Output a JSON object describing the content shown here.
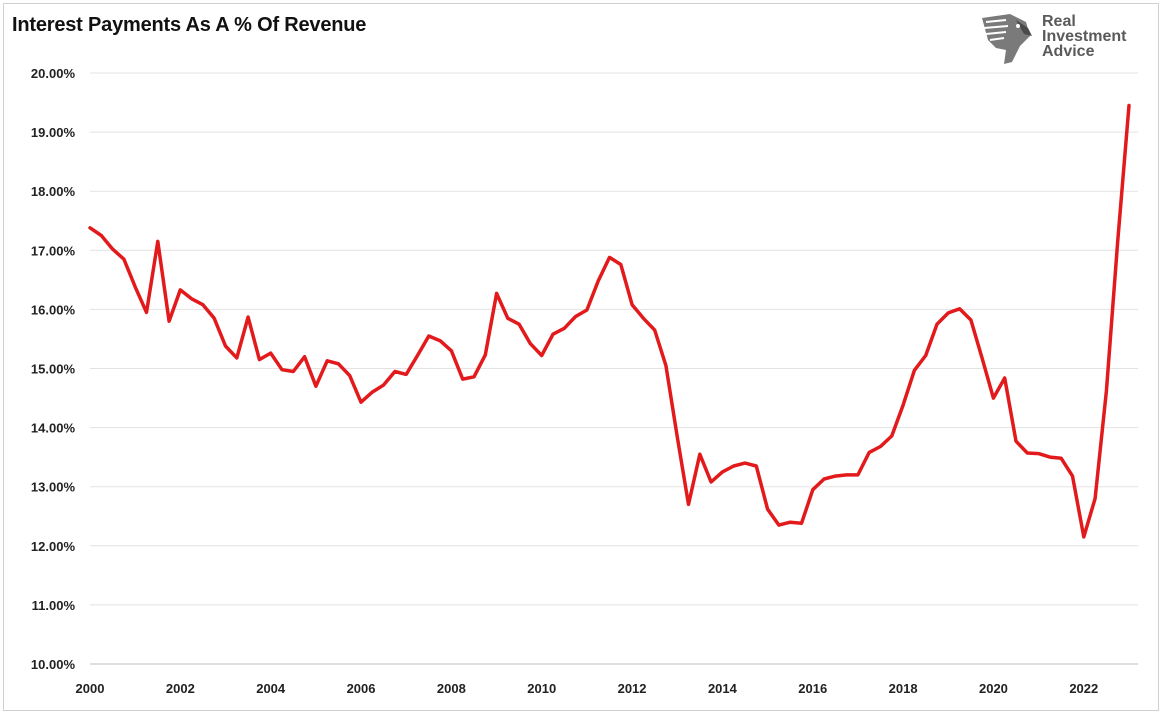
{
  "title": "Interest Payments As A % Of Revenue",
  "logo": {
    "lines": [
      "Real",
      "Investment",
      "Advice"
    ],
    "icon": "eagle-head-icon"
  },
  "chart_data": {
    "type": "line",
    "title": "Interest Payments As A % Of Revenue",
    "xlabel": "",
    "ylabel": "",
    "xlim": [
      2000,
      2023.2
    ],
    "ylim": [
      10,
      20
    ],
    "grid": "horizontal",
    "x_ticks": [
      2000,
      2002,
      2004,
      2006,
      2008,
      2010,
      2012,
      2014,
      2016,
      2018,
      2020,
      2022
    ],
    "y_ticks": [
      "10.00%",
      "11.00%",
      "12.00%",
      "13.00%",
      "14.00%",
      "15.00%",
      "16.00%",
      "17.00%",
      "18.00%",
      "19.00%",
      "20.00%"
    ],
    "y_tick_values": [
      10,
      11,
      12,
      13,
      14,
      15,
      16,
      17,
      18,
      19,
      20
    ],
    "series": [
      {
        "color": "#e31a1c",
        "x": [
          2000.0,
          2000.25,
          2000.5,
          2000.75,
          2001.0,
          2001.25,
          2001.5,
          2001.75,
          2002.0,
          2002.25,
          2002.5,
          2002.75,
          2003.0,
          2003.25,
          2003.5,
          2003.75,
          2004.0,
          2004.25,
          2004.5,
          2004.75,
          2005.0,
          2005.25,
          2005.5,
          2005.75,
          2006.0,
          2006.25,
          2006.5,
          2006.75,
          2007.0,
          2007.25,
          2007.5,
          2007.75,
          2008.0,
          2008.25,
          2008.5,
          2008.75,
          2009.0,
          2009.25,
          2009.5,
          2009.75,
          2010.0,
          2010.25,
          2010.5,
          2010.75,
          2011.0,
          2011.25,
          2011.5,
          2011.75,
          2012.0,
          2012.25,
          2012.5,
          2012.75,
          2013.0,
          2013.25,
          2013.5,
          2013.75,
          2014.0,
          2014.25,
          2014.5,
          2014.75,
          2015.0,
          2015.25,
          2015.5,
          2015.75,
          2016.0,
          2016.25,
          2016.5,
          2016.75,
          2017.0,
          2017.25,
          2017.5,
          2017.75,
          2018.0,
          2018.25,
          2018.5,
          2018.75,
          2019.0,
          2019.25,
          2019.5,
          2019.75,
          2020.0,
          2020.25,
          2020.5,
          2020.75,
          2021.0,
          2021.25,
          2021.5,
          2021.75,
          2022.0,
          2022.25,
          2022.5,
          2022.75,
          2023.0
        ],
        "y": [
          17.38,
          17.25,
          17.02,
          16.85,
          16.38,
          15.95,
          17.15,
          15.8,
          16.33,
          16.18,
          16.08,
          15.85,
          15.38,
          15.18,
          15.87,
          15.15,
          15.26,
          14.98,
          14.95,
          15.2,
          14.7,
          15.13,
          15.08,
          14.88,
          14.43,
          14.6,
          14.72,
          14.95,
          14.9,
          15.22,
          15.55,
          15.47,
          15.3,
          14.82,
          14.86,
          15.23,
          16.27,
          15.85,
          15.75,
          15.42,
          15.22,
          15.58,
          15.68,
          15.88,
          15.99,
          16.48,
          16.88,
          16.76,
          16.08,
          15.85,
          15.65,
          15.05,
          13.85,
          12.7,
          13.55,
          13.08,
          13.25,
          13.35,
          13.4,
          13.35,
          12.62,
          12.35,
          12.4,
          12.38,
          12.95,
          13.13,
          13.18,
          13.2,
          13.2,
          13.58,
          13.68,
          13.86,
          14.38,
          14.97,
          15.22,
          15.75,
          15.94,
          16.01,
          15.82,
          15.17,
          14.5,
          14.84,
          13.77,
          13.57,
          13.56,
          13.5,
          13.48,
          13.18,
          12.15,
          12.8,
          14.62,
          17.15,
          19.45
        ]
      }
    ]
  }
}
